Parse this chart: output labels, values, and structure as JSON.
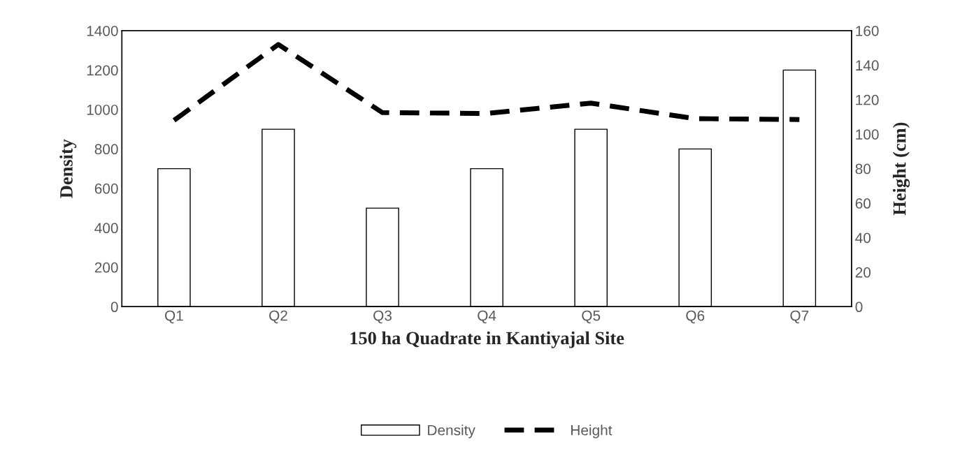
{
  "chart_data": {
    "type": "bar",
    "xlabel": "150 ha Quadrate in Kantiyajal Site",
    "ylabel": "Density",
    "y2label": "Height (cm)",
    "categories": [
      "Q1",
      "Q2",
      "Q3",
      "Q4",
      "Q5",
      "Q6",
      "Q7"
    ],
    "series": [
      {
        "name": "Density",
        "color": "#ffffff",
        "values": [
          700,
          900,
          500,
          700,
          900,
          800,
          1200
        ]
      },
      {
        "name": "Height",
        "type": "line",
        "axis": "y2",
        "color": "#000000",
        "line_style": "dashed",
        "values": [
          108,
          152,
          112.5,
          112,
          118,
          109,
          108.5
        ]
      }
    ],
    "ylim": [
      0,
      1400
    ],
    "yticks": [
      0,
      200,
      400,
      600,
      800,
      1000,
      1200,
      1400
    ],
    "y2lim": [
      0,
      160
    ],
    "y2ticks": [
      0,
      20,
      40,
      60,
      80,
      100,
      120,
      140,
      160
    ],
    "grid": false,
    "legend": "bottom"
  }
}
